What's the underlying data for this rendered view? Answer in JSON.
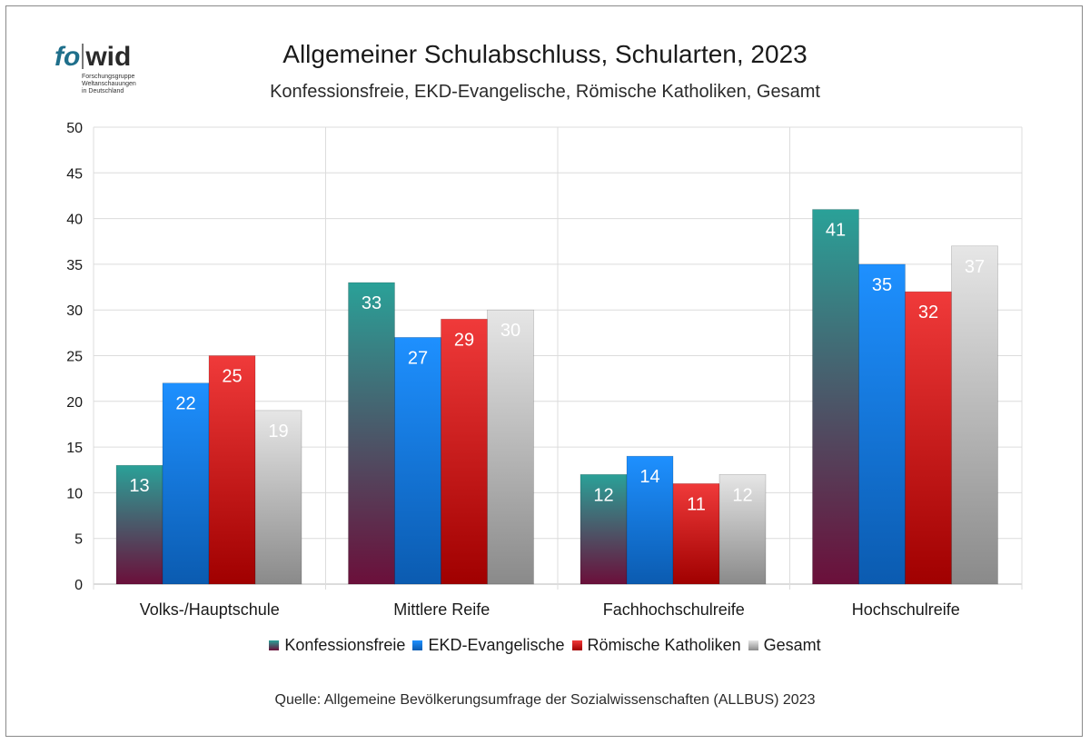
{
  "logo": {
    "part1": "fo",
    "part2": "wid",
    "line1": "Forschungsgruppe",
    "line2": "Weltanschauungen",
    "line3": "in Deutschland"
  },
  "chart_data": {
    "type": "bar",
    "title": "Allgemeiner Schulabschluss, Schularten, 2023",
    "subtitle": "Konfessionsfreie, EKD-Evangelische, Römische Katholiken, Gesamt",
    "categories": [
      "Volks-/Hauptschule",
      "Mittlere Reife",
      "Fachhochschulreife",
      "Hochschulreife"
    ],
    "series": [
      {
        "name": "Konfessionsfreie",
        "values": [
          13,
          33,
          12,
          41
        ],
        "color_top": "#2aa198",
        "color_bottom": "#6b0f3a"
      },
      {
        "name": "EKD-Evangelische",
        "values": [
          22,
          27,
          14,
          35
        ],
        "color_top": "#1e90ff",
        "color_bottom": "#0b5bb0"
      },
      {
        "name": "Römische Katholiken",
        "values": [
          25,
          29,
          11,
          32
        ],
        "color_top": "#f03a3a",
        "color_bottom": "#a00000"
      },
      {
        "name": "Gesamt",
        "values": [
          19,
          30,
          12,
          37
        ],
        "color_top": "#e6e6e6",
        "color_bottom": "#8a8a8a"
      }
    ],
    "ylim": [
      0,
      50
    ],
    "yticks": [
      0,
      5,
      10,
      15,
      20,
      25,
      30,
      35,
      40,
      45,
      50
    ],
    "grid": true,
    "legend": "bottom"
  },
  "source": "Quelle: Allgemeine Bevölkerungsumfrage der Sozialwissenschaften (ALLBUS) 2023"
}
